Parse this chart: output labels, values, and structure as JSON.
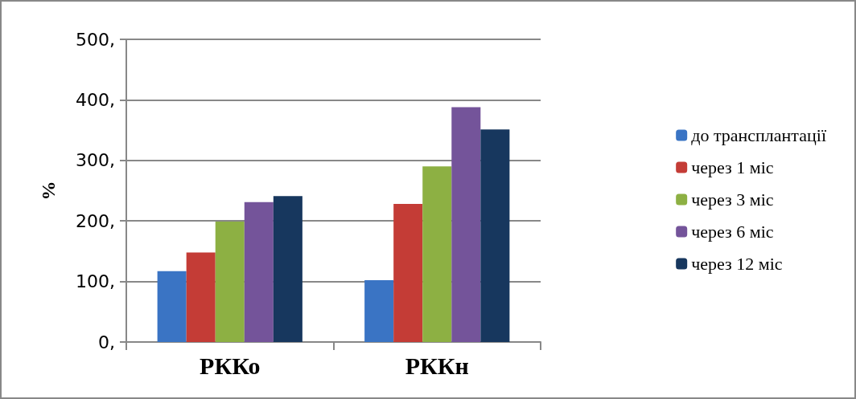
{
  "chart_data": {
    "type": "bar",
    "ylabel": "%",
    "categories": [
      "РККо",
      "РККн"
    ],
    "series": [
      {
        "name": "до трансплантації",
        "color": "#3a74c4",
        "values": [
          117,
          102
        ]
      },
      {
        "name": "через 1 міс",
        "color": "#c43c36",
        "values": [
          148,
          228
        ]
      },
      {
        "name": "через 3 міс",
        "color": "#8db043",
        "values": [
          199,
          290
        ]
      },
      {
        "name": "через 6 міс",
        "color": "#74549a",
        "values": [
          231,
          388
        ]
      },
      {
        "name": "через 12 міс",
        "color": "#17375e",
        "values": [
          241,
          351
        ]
      }
    ],
    "ylim": [
      0,
      500
    ],
    "yticks": [
      {
        "value": 0,
        "label": "0,"
      },
      {
        "value": 100,
        "label": "100,"
      },
      {
        "value": 200,
        "label": "200,"
      },
      {
        "value": 300,
        "label": "300,"
      },
      {
        "value": 400,
        "label": "400,"
      },
      {
        "value": 500,
        "label": "500,"
      }
    ],
    "grid": "y",
    "legend": "right"
  }
}
